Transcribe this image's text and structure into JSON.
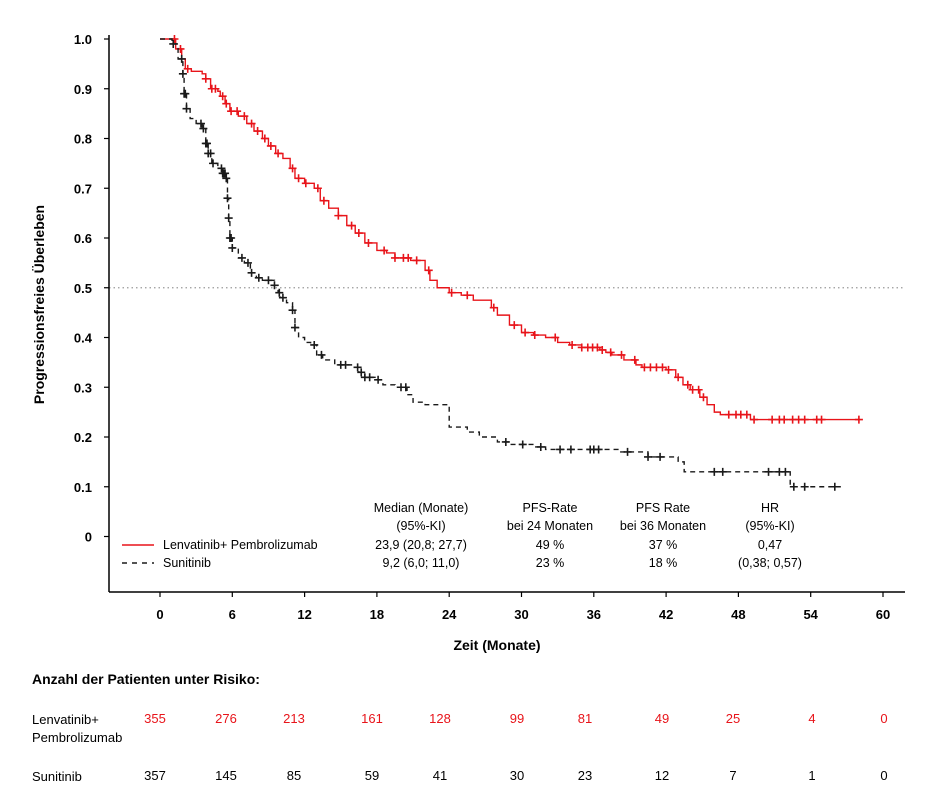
{
  "chart_data": {
    "type": "line",
    "ylabel": "Progressionsfreies Überleben",
    "xlabel": "Zeit (Monate)",
    "xlim": [
      -3,
      61
    ],
    "ylim": [
      -0.12,
      1.0
    ],
    "xticks": [
      0,
      6,
      12,
      18,
      24,
      30,
      36,
      42,
      48,
      54,
      60
    ],
    "yticks": [
      0,
      0.1,
      0.2,
      0.3,
      0.4,
      0.5,
      0.6,
      0.7,
      0.8,
      0.9,
      1.0
    ],
    "ytick_labels": [
      "0",
      "0.1",
      "0.2",
      "0.3",
      "0.4",
      "0.5",
      "0.6",
      "0.7",
      "0.8",
      "0.9",
      "1.0"
    ],
    "reference_line_y": 0.5,
    "series": [
      {
        "name": "Lenvatinib+ Pembrolizumab",
        "color": "#e8141a",
        "style": "solid",
        "points": [
          [
            0,
            1.0
          ],
          [
            1.0,
            1.0
          ],
          [
            1.3,
            0.98
          ],
          [
            1.8,
            0.96
          ],
          [
            2.1,
            0.94
          ],
          [
            2.6,
            0.935
          ],
          [
            3.5,
            0.93
          ],
          [
            3.8,
            0.92
          ],
          [
            4.2,
            0.9
          ],
          [
            4.8,
            0.895
          ],
          [
            5.0,
            0.885
          ],
          [
            5.4,
            0.87
          ],
          [
            5.8,
            0.855
          ],
          [
            6.5,
            0.845
          ],
          [
            7.2,
            0.83
          ],
          [
            7.8,
            0.815
          ],
          [
            8.5,
            0.8
          ],
          [
            9.0,
            0.785
          ],
          [
            9.6,
            0.77
          ],
          [
            10.2,
            0.76
          ],
          [
            10.8,
            0.74
          ],
          [
            11.2,
            0.72
          ],
          [
            12.0,
            0.71
          ],
          [
            12.8,
            0.7
          ],
          [
            13.3,
            0.675
          ],
          [
            14.0,
            0.66
          ],
          [
            14.8,
            0.645
          ],
          [
            15.5,
            0.625
          ],
          [
            16.2,
            0.61
          ],
          [
            17.0,
            0.59
          ],
          [
            18.0,
            0.575
          ],
          [
            18.8,
            0.57
          ],
          [
            19.5,
            0.56
          ],
          [
            20.8,
            0.555
          ],
          [
            22.0,
            0.535
          ],
          [
            22.4,
            0.515
          ],
          [
            23.0,
            0.5
          ],
          [
            24.0,
            0.49
          ],
          [
            25.0,
            0.485
          ],
          [
            26.0,
            0.475
          ],
          [
            27.5,
            0.46
          ],
          [
            28.0,
            0.445
          ],
          [
            29.0,
            0.425
          ],
          [
            30.0,
            0.41
          ],
          [
            31.0,
            0.405
          ],
          [
            32.0,
            0.4
          ],
          [
            33.0,
            0.39
          ],
          [
            34.0,
            0.385
          ],
          [
            35.0,
            0.38
          ],
          [
            36.5,
            0.375
          ],
          [
            37.0,
            0.37
          ],
          [
            37.5,
            0.365
          ],
          [
            38.5,
            0.355
          ],
          [
            39.5,
            0.345
          ],
          [
            40.0,
            0.34
          ],
          [
            42.0,
            0.335
          ],
          [
            42.8,
            0.32
          ],
          [
            43.4,
            0.305
          ],
          [
            44.0,
            0.295
          ],
          [
            44.8,
            0.28
          ],
          [
            45.4,
            0.265
          ],
          [
            46.0,
            0.25
          ],
          [
            46.5,
            0.245
          ],
          [
            47.5,
            0.245
          ],
          [
            49.0,
            0.235
          ],
          [
            50.5,
            0.235
          ],
          [
            58.0,
            0.235
          ]
        ],
        "censor": [
          1.2,
          1.7,
          2.3,
          3.8,
          4.3,
          4.6,
          5.2,
          5.5,
          5.9,
          6.4,
          7.0,
          7.6,
          8.1,
          8.7,
          9.2,
          9.8,
          11.0,
          11.5,
          12.1,
          13.1,
          13.6,
          14.8,
          15.9,
          16.5,
          17.3,
          18.6,
          19.5,
          20.2,
          20.6,
          21.3,
          22.3,
          24.2,
          25.5,
          27.7,
          29.4,
          30.3,
          31.1,
          32.8,
          34.2,
          35.0,
          35.5,
          35.9,
          36.3,
          36.7,
          37.4,
          38.3,
          39.4,
          40.2,
          40.7,
          41.2,
          41.7,
          42.2,
          43.0,
          43.8,
          44.2,
          44.7,
          45.1,
          47.2,
          47.8,
          48.2,
          48.7,
          49.3,
          50.8,
          51.4,
          51.8,
          52.5,
          53.0,
          53.5,
          54.5,
          54.9,
          58.0
        ]
      },
      {
        "name": "Sunitinib",
        "color": "#1a1a1a",
        "style": "dashed",
        "points": [
          [
            0,
            1.0
          ],
          [
            1.0,
            0.99
          ],
          [
            1.5,
            0.96
          ],
          [
            1.9,
            0.93
          ],
          [
            2.0,
            0.89
          ],
          [
            2.2,
            0.86
          ],
          [
            2.5,
            0.84
          ],
          [
            3.0,
            0.83
          ],
          [
            3.5,
            0.82
          ],
          [
            3.8,
            0.79
          ],
          [
            4.0,
            0.77
          ],
          [
            4.3,
            0.75
          ],
          [
            4.8,
            0.74
          ],
          [
            5.2,
            0.73
          ],
          [
            5.5,
            0.72
          ],
          [
            5.6,
            0.68
          ],
          [
            5.7,
            0.64
          ],
          [
            5.8,
            0.6
          ],
          [
            6.0,
            0.58
          ],
          [
            6.5,
            0.56
          ],
          [
            7.0,
            0.55
          ],
          [
            7.5,
            0.53
          ],
          [
            8.0,
            0.52
          ],
          [
            8.5,
            0.515
          ],
          [
            9.5,
            0.505
          ],
          [
            9.8,
            0.49
          ],
          [
            10.0,
            0.48
          ],
          [
            10.5,
            0.47
          ],
          [
            11.0,
            0.455
          ],
          [
            11.2,
            0.42
          ],
          [
            11.5,
            0.4
          ],
          [
            12.0,
            0.39
          ],
          [
            12.5,
            0.385
          ],
          [
            13.0,
            0.365
          ],
          [
            13.5,
            0.355
          ],
          [
            14.5,
            0.345
          ],
          [
            16.0,
            0.34
          ],
          [
            16.5,
            0.33
          ],
          [
            17.0,
            0.32
          ],
          [
            18.0,
            0.315
          ],
          [
            18.5,
            0.305
          ],
          [
            19.5,
            0.3
          ],
          [
            20.5,
            0.285
          ],
          [
            21.0,
            0.27
          ],
          [
            22.0,
            0.265
          ],
          [
            24.0,
            0.22
          ],
          [
            25.5,
            0.21
          ],
          [
            26.5,
            0.2
          ],
          [
            28.0,
            0.19
          ],
          [
            29.0,
            0.185
          ],
          [
            31.0,
            0.18
          ],
          [
            32.0,
            0.175
          ],
          [
            38.0,
            0.17
          ],
          [
            40.5,
            0.16
          ],
          [
            43.0,
            0.15
          ],
          [
            43.5,
            0.13
          ],
          [
            47.0,
            0.13
          ],
          [
            52.0,
            0.13
          ],
          [
            52.3,
            0.1
          ],
          [
            54.0,
            0.1
          ],
          [
            56.5,
            0.1
          ]
        ],
        "censor": [
          1.1,
          1.8,
          1.9,
          2.0,
          2.1,
          2.2,
          3.4,
          3.6,
          3.8,
          3.9,
          4.0,
          4.2,
          4.4,
          5.1,
          5.2,
          5.3,
          5.4,
          5.5,
          5.6,
          5.7,
          5.8,
          5.9,
          6.0,
          6.8,
          7.3,
          7.6,
          8.2,
          9.0,
          9.5,
          9.9,
          10.2,
          11.0,
          11.2,
          12.8,
          13.4,
          15.0,
          15.4,
          16.4,
          16.7,
          17.0,
          17.4,
          18.1,
          20.0,
          20.4,
          28.7,
          30.1,
          31.6,
          33.2,
          34.1,
          35.7,
          36.0,
          36.4,
          38.8,
          40.5,
          41.5,
          46.0,
          46.7,
          50.5,
          51.4,
          51.9,
          52.6,
          53.5,
          56.0
        ]
      }
    ],
    "legend_table": {
      "headers": [
        {
          "line1": "Median (Monate)",
          "line2": "(95%-KI)"
        },
        {
          "line1": "PFS-Rate",
          "line2": "bei 24 Monaten"
        },
        {
          "line1": "PFS Rate",
          "line2": "bei 36 Monaten"
        },
        {
          "line1": "HR",
          "line2": "(95%-KI)"
        }
      ],
      "rows": [
        {
          "label": "Lenvatinib+ Pembrolizumab",
          "values": [
            "23,9 (20,8; 27,7)",
            "49 %",
            "37 %",
            "0,47"
          ]
        },
        {
          "label": "Sunitinib",
          "values": [
            "9,2 (6,0; 11,0)",
            "23 %",
            "18 %",
            "(0,38; 0,57)"
          ]
        }
      ]
    },
    "risk_table": {
      "title": "Anzahl der Patienten unter Risiko:",
      "rows": [
        {
          "label_line1": "Lenvatinib+",
          "label_line2": "Pembrolizumab",
          "color": "#e8141a",
          "values": [
            "355",
            "276",
            "213",
            "161",
            "128",
            "99",
            "81",
            "49",
            "25",
            "4",
            "0"
          ]
        },
        {
          "label_line1": "Sunitinib",
          "label_line2": "",
          "color": "#000000",
          "values": [
            "357",
            "145",
            "85",
            "59",
            "41",
            "30",
            "23",
            "12",
            "7",
            "1",
            "0"
          ]
        }
      ]
    }
  }
}
